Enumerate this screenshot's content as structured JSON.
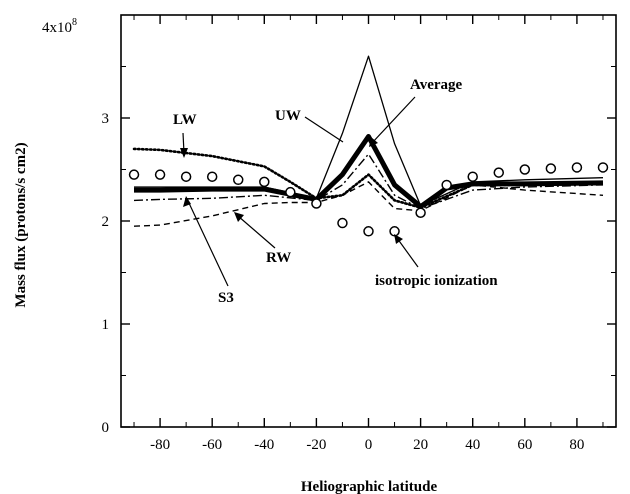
{
  "chart_data": {
    "type": "line",
    "title": "",
    "xlabel": "Heliographic latitude",
    "ylabel": "Mass flux (protons/s cm2)",
    "xlim": [
      -95,
      95
    ],
    "ylim": [
      0,
      400000000.0
    ],
    "x_ticks": [
      -80,
      -60,
      -40,
      -20,
      0,
      20,
      40,
      60,
      80
    ],
    "x_tick_labels": [
      "-80",
      "-60",
      "-40",
      "-20",
      "0",
      "20",
      "40",
      "60",
      "80"
    ],
    "y_ticks": [
      0,
      100000000.0,
      200000000.0,
      300000000.0
    ],
    "y_tick_labels": [
      "0",
      "1",
      "2",
      "3"
    ],
    "y_top_label": {
      "base": "4x10",
      "exp": "8"
    },
    "grid": false,
    "series": [
      {
        "name": "LW",
        "style": "dotted",
        "x": [
          -90,
          -80,
          -60,
          -40,
          -30,
          -20,
          -10,
          0,
          10,
          20,
          40,
          60,
          90
        ],
        "y": [
          270000000.0,
          269000000.0,
          263000000.0,
          253000000.0,
          238000000.0,
          222000000.0,
          225000000.0,
          245000000.0,
          220000000.0,
          213000000.0,
          235000000.0,
          235000000.0,
          236000000.0
        ]
      },
      {
        "name": "UW",
        "style": "thin",
        "x": [
          -90,
          -80,
          -60,
          -40,
          -20,
          -10,
          0,
          10,
          20,
          40,
          60,
          90
        ],
        "y": [
          233000000.0,
          233000000.0,
          233000000.0,
          233000000.0,
          222000000.0,
          285000000.0,
          360000000.0,
          275000000.0,
          215000000.0,
          238000000.0,
          240000000.0,
          242000000.0
        ]
      },
      {
        "name": "Average",
        "style": "thick",
        "x": [
          -90,
          -80,
          -60,
          -40,
          -20,
          -10,
          0,
          10,
          20,
          30,
          40,
          60,
          90
        ],
        "y": [
          230000000.0,
          230000000.0,
          231000000.0,
          231000000.0,
          221000000.0,
          245000000.0,
          282000000.0,
          235000000.0,
          214000000.0,
          232000000.0,
          236000000.0,
          236000000.0,
          237000000.0
        ]
      },
      {
        "name": "S3",
        "style": "dash-dot",
        "x": [
          -90,
          -80,
          -60,
          -40,
          -20,
          -10,
          0,
          10,
          20,
          40,
          60,
          90
        ],
        "y": [
          220000000.0,
          221000000.0,
          222000000.0,
          225000000.0,
          220000000.0,
          235000000.0,
          265000000.0,
          225000000.0,
          212000000.0,
          230000000.0,
          233000000.0,
          235000000.0
        ]
      },
      {
        "name": "RW",
        "style": "dashed",
        "x": [
          -90,
          -80,
          -60,
          -40,
          -30,
          -20,
          -10,
          0,
          10,
          20,
          40,
          60,
          90
        ],
        "y": [
          195000000.0,
          196000000.0,
          205000000.0,
          217000000.0,
          218000000.0,
          218000000.0,
          225000000.0,
          238000000.0,
          212000000.0,
          210000000.0,
          235000000.0,
          230000000.0,
          225000000.0
        ]
      },
      {
        "name": "isotropic ionization",
        "style": "circles",
        "x": [
          -90,
          -80,
          -70,
          -60,
          -50,
          -40,
          -30,
          -20,
          -10,
          0,
          10,
          20,
          30,
          40,
          50,
          60,
          70,
          80,
          90
        ],
        "y": [
          245000000.0,
          245000000.0,
          243000000.0,
          243000000.0,
          240000000.0,
          238000000.0,
          228000000.0,
          217000000.0,
          198000000.0,
          190000000.0,
          190000000.0,
          208000000.0,
          235000000.0,
          243000000.0,
          247000000.0,
          250000000.0,
          251000000.0,
          252000000.0,
          252000000.0
        ]
      }
    ],
    "annotations": [
      {
        "text": "LW"
      },
      {
        "text": "UW"
      },
      {
        "text": "Average"
      },
      {
        "text": "S3"
      },
      {
        "text": "RW"
      },
      {
        "text": "isotropic ionization"
      }
    ]
  }
}
